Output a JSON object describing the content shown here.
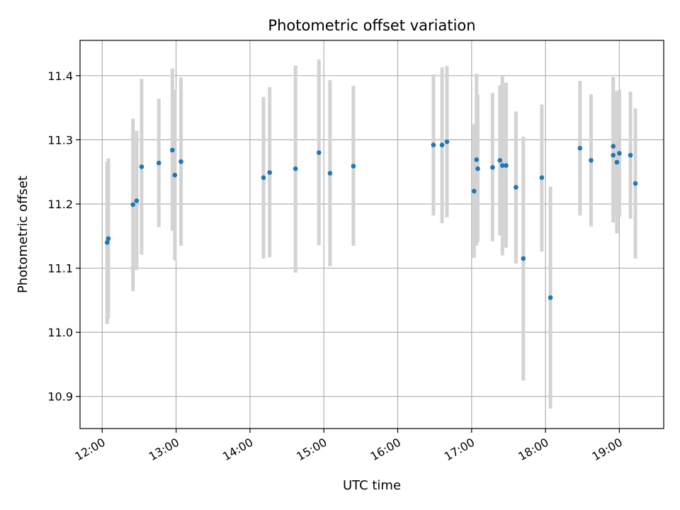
{
  "chart_data": {
    "type": "scatter",
    "title": "Photometric offset variation",
    "xlabel": "UTC time",
    "ylabel": "Photometric offset",
    "xlim": [
      "11:42",
      "19:36"
    ],
    "ylim": [
      10.85,
      11.455
    ],
    "x_ticks": [
      "12:00",
      "13:00",
      "14:00",
      "15:00",
      "16:00",
      "17:00",
      "18:00",
      "19:00"
    ],
    "y_ticks": [
      10.9,
      11.0,
      11.1,
      11.2,
      11.3,
      11.4
    ],
    "grid": true,
    "colors": {
      "point": "#1f77b4",
      "errorbar": "#d3d3d3",
      "grid": "#b0b0b0"
    },
    "points": [
      {
        "x": "12:04",
        "y": 11.14,
        "ylo": 11.013,
        "yhi": 11.266
      },
      {
        "x": "12:05",
        "y": 11.146,
        "ylo": 11.021,
        "yhi": 11.271
      },
      {
        "x": "12:25",
        "y": 11.199,
        "ylo": 11.064,
        "yhi": 11.333
      },
      {
        "x": "12:28",
        "y": 11.205,
        "ylo": 11.097,
        "yhi": 11.314
      },
      {
        "x": "12:32",
        "y": 11.258,
        "ylo": 11.121,
        "yhi": 11.395
      },
      {
        "x": "12:46",
        "y": 11.264,
        "ylo": 11.164,
        "yhi": 11.364
      },
      {
        "x": "12:57",
        "y": 11.284,
        "ylo": 11.158,
        "yhi": 11.411
      },
      {
        "x": "12:59",
        "y": 11.245,
        "ylo": 11.112,
        "yhi": 11.378
      },
      {
        "x": "13:04",
        "y": 11.266,
        "ylo": 11.135,
        "yhi": 11.397
      },
      {
        "x": "14:11",
        "y": 11.241,
        "ylo": 11.115,
        "yhi": 11.367
      },
      {
        "x": "14:16",
        "y": 11.249,
        "ylo": 11.117,
        "yhi": 11.382
      },
      {
        "x": "14:37",
        "y": 11.255,
        "ylo": 11.093,
        "yhi": 11.416
      },
      {
        "x": "14:56",
        "y": 11.28,
        "ylo": 11.136,
        "yhi": 11.425
      },
      {
        "x": "15:05",
        "y": 11.248,
        "ylo": 11.103,
        "yhi": 11.393
      },
      {
        "x": "15:24",
        "y": 11.259,
        "ylo": 11.135,
        "yhi": 11.384
      },
      {
        "x": "16:29",
        "y": 11.292,
        "ylo": 11.182,
        "yhi": 11.402
      },
      {
        "x": "16:36",
        "y": 11.292,
        "ylo": 11.17,
        "yhi": 11.413
      },
      {
        "x": "16:40",
        "y": 11.297,
        "ylo": 11.179,
        "yhi": 11.415
      },
      {
        "x": "17:02",
        "y": 11.22,
        "ylo": 11.116,
        "yhi": 11.325
      },
      {
        "x": "17:04",
        "y": 11.269,
        "ylo": 11.135,
        "yhi": 11.403
      },
      {
        "x": "17:05",
        "y": 11.255,
        "ylo": 11.141,
        "yhi": 11.37
      },
      {
        "x": "17:17",
        "y": 11.257,
        "ylo": 11.142,
        "yhi": 11.373
      },
      {
        "x": "17:23",
        "y": 11.268,
        "ylo": 11.151,
        "yhi": 11.385
      },
      {
        "x": "17:25",
        "y": 11.26,
        "ylo": 11.12,
        "yhi": 11.399
      },
      {
        "x": "17:28",
        "y": 11.26,
        "ylo": 11.132,
        "yhi": 11.389
      },
      {
        "x": "17:36",
        "y": 11.226,
        "ylo": 11.107,
        "yhi": 11.344
      },
      {
        "x": "17:42",
        "y": 11.115,
        "ylo": 10.925,
        "yhi": 11.305
      },
      {
        "x": "17:57",
        "y": 11.241,
        "ylo": 11.126,
        "yhi": 11.355
      },
      {
        "x": "18:04",
        "y": 11.054,
        "ylo": 10.881,
        "yhi": 11.227
      },
      {
        "x": "18:28",
        "y": 11.287,
        "ylo": 11.182,
        "yhi": 11.392
      },
      {
        "x": "18:37",
        "y": 11.268,
        "ylo": 11.165,
        "yhi": 11.371
      },
      {
        "x": "18:55",
        "y": 11.29,
        "ylo": 11.181,
        "yhi": 11.398
      },
      {
        "x": "18:55",
        "y": 11.276,
        "ylo": 11.171,
        "yhi": 11.381
      },
      {
        "x": "18:58",
        "y": 11.265,
        "ylo": 11.154,
        "yhi": 11.376
      },
      {
        "x": "19:00",
        "y": 11.279,
        "ylo": 11.18,
        "yhi": 11.378
      },
      {
        "x": "19:09",
        "y": 11.276,
        "ylo": 11.177,
        "yhi": 11.375
      },
      {
        "x": "19:13",
        "y": 11.232,
        "ylo": 11.115,
        "yhi": 11.349
      }
    ]
  }
}
